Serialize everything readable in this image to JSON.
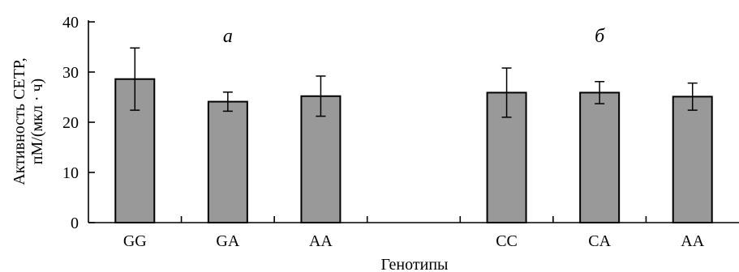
{
  "chart_data": {
    "type": "bar",
    "xlabel": "Генотипы",
    "ylabel_lines": [
      "Активность CETP,",
      "пМ/(мкл · ч)"
    ],
    "ylim": [
      0,
      40
    ],
    "yticks": [
      0,
      10,
      20,
      30,
      40
    ],
    "bar_color": "#999999",
    "groups": [
      {
        "label": "а",
        "categories": [
          "GG",
          "GA",
          "AA"
        ],
        "values": [
          28.6,
          24.1,
          25.2
        ],
        "errors": [
          6.2,
          1.9,
          4.0
        ]
      },
      {
        "label": "б",
        "categories": [
          "CC",
          "CA",
          "AA"
        ],
        "values": [
          25.9,
          25.9,
          25.1
        ],
        "errors": [
          4.9,
          2.2,
          2.7
        ]
      }
    ]
  }
}
